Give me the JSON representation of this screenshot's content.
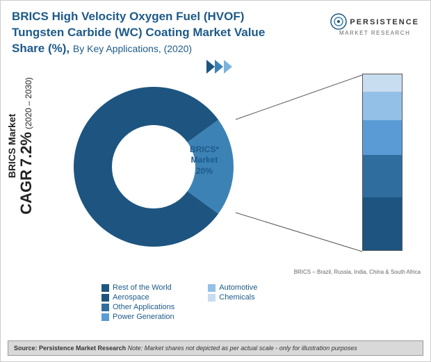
{
  "header": {
    "title_line1": "BRICS High Velocity Oxygen Fuel (HVOF)",
    "title_line2": "Tungsten Carbide (WC) Coating Market Value",
    "title_line3": "Share (%),",
    "subtitle": "By Key Applications, (2020)"
  },
  "logo": {
    "brand": "PERSISTENCE",
    "tagline": "MARKET RESEARCH"
  },
  "ylabel": {
    "market": "BRICS Market",
    "cagr_label": "CAGR",
    "cagr_value": "7.2%",
    "period": "(2020 – 2030)"
  },
  "donut": {
    "center_label_1": "BRICS*",
    "center_label_2": "Market",
    "center_value": "20%",
    "slices": [
      {
        "name": "Rest of the World",
        "value": 80,
        "color": "#1d5580"
      },
      {
        "name": "BRICS",
        "value": 20,
        "color": "#3c82b5"
      }
    ],
    "inner_radius": 60,
    "outer_radius": 115,
    "background": "#ffffff"
  },
  "stack": {
    "segments": [
      {
        "name": "Aerospace",
        "value": 30,
        "color": "#1d5580"
      },
      {
        "name": "Other Applications",
        "value": 24,
        "color": "#2f6d9e"
      },
      {
        "name": "Power Generation",
        "value": 20,
        "color": "#5a9bd5"
      },
      {
        "name": "Automotive",
        "value": 16,
        "color": "#93c0e6"
      },
      {
        "name": "Chemicals",
        "value": 10,
        "color": "#c9ddf0"
      }
    ]
  },
  "legend": {
    "col1": [
      {
        "label": "Rest of the World",
        "color": "#1d5580"
      },
      {
        "label": "Aerospace",
        "color": "#1d5580"
      },
      {
        "label": "Other Applications",
        "color": "#2f6d9e"
      },
      {
        "label": "Power Generation",
        "color": "#5a9bd5"
      }
    ],
    "col2": [
      {
        "label": "Automotive",
        "color": "#93c0e6"
      },
      {
        "label": "Chemicals",
        "color": "#c9ddf0"
      }
    ]
  },
  "brics_note": "BRICS – Brazil, Russia, India, China & South Africa",
  "footer": {
    "source": "Source: Persistence Market Research",
    "note": "Note: Market shares not depicted as per actual scale - only for illustration purposes"
  },
  "chevron_colors": [
    "#1d5580",
    "#3c82b5",
    "#7bb3dd"
  ]
}
